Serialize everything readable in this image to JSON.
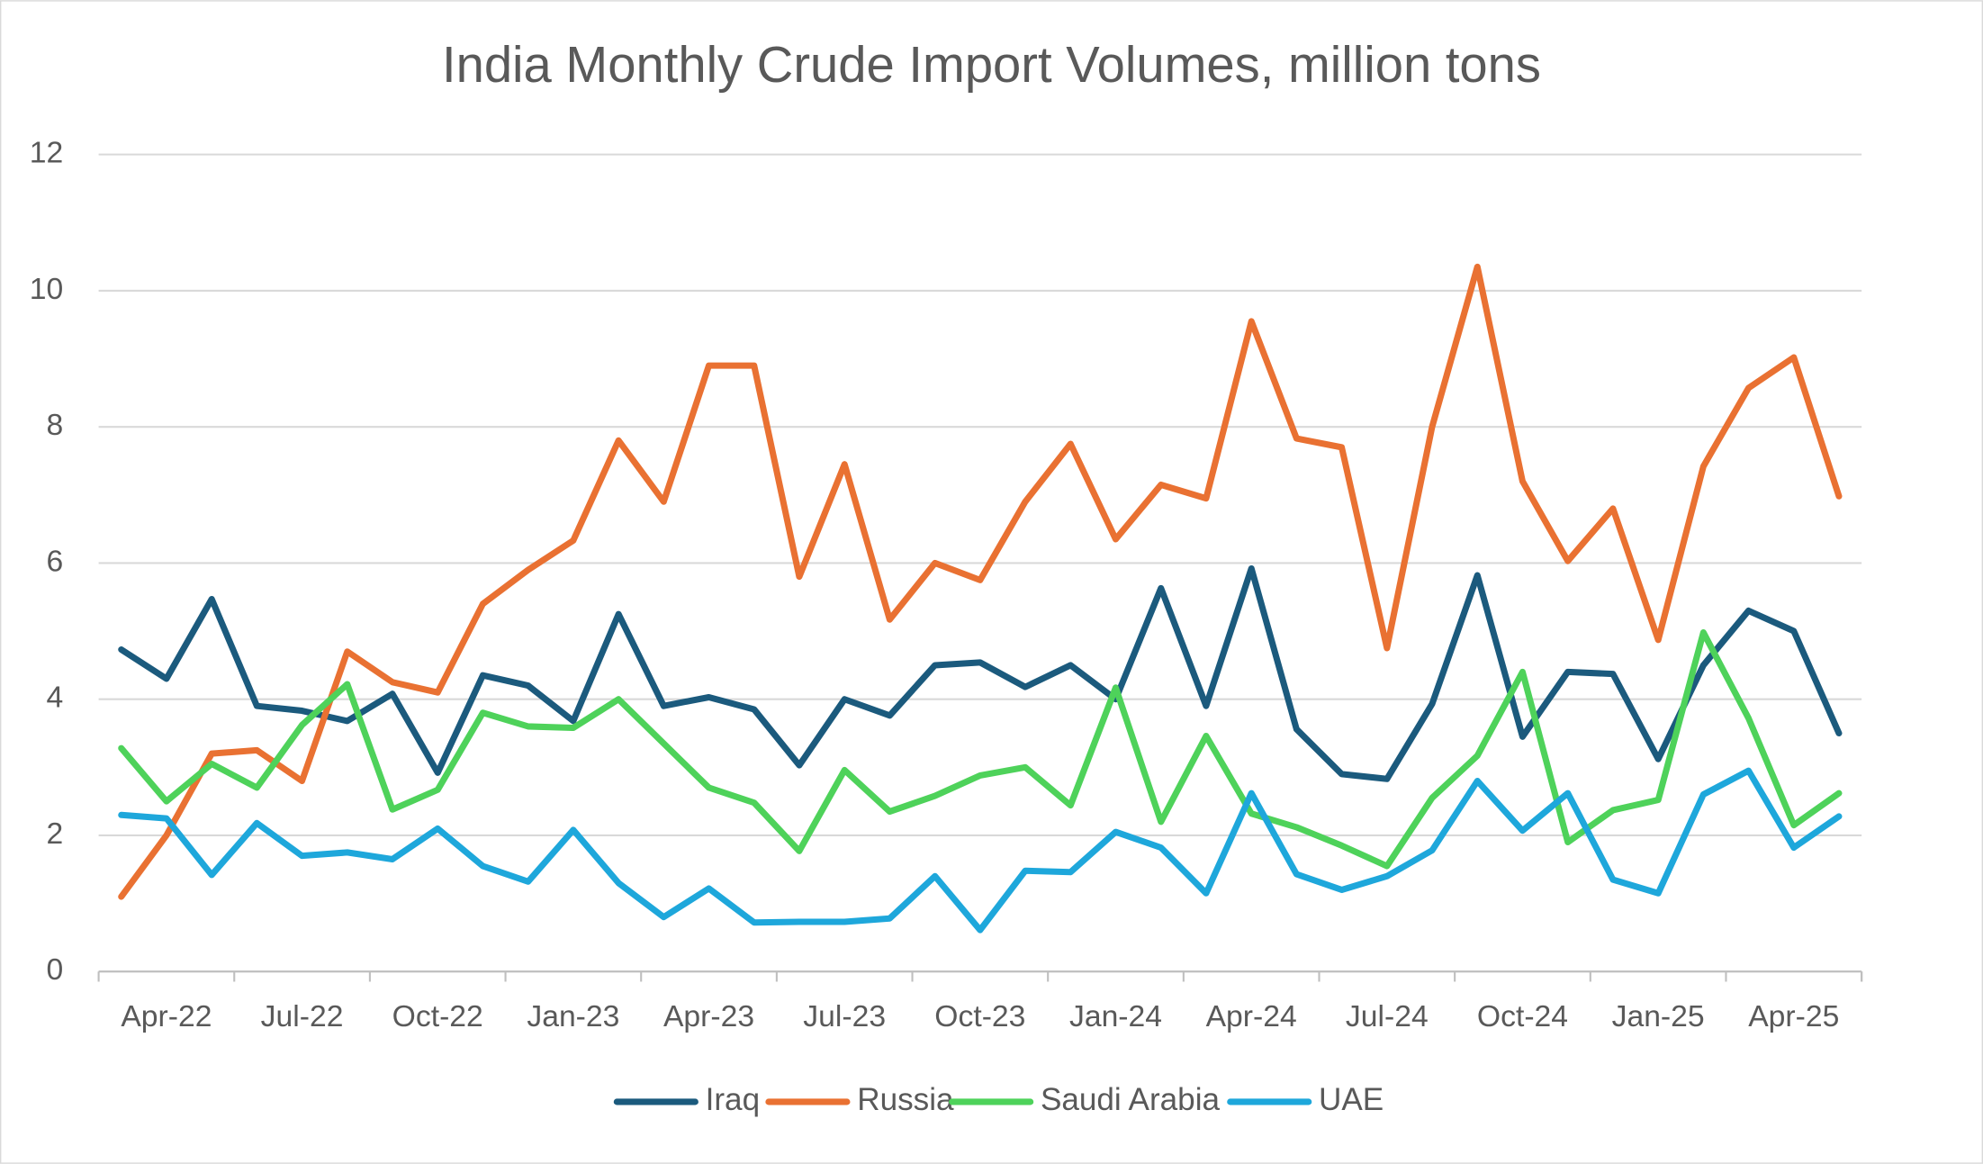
{
  "chart_data": {
    "type": "line",
    "title": "India Monthly Crude Import Volumes, million tons",
    "categories": [
      null,
      "Apr-22",
      null,
      null,
      "Jul-22",
      null,
      null,
      "Oct-22",
      null,
      null,
      "Jan-23",
      null,
      null,
      "Apr-23",
      null,
      null,
      "Jul-23",
      null,
      null,
      "Oct-23",
      null,
      null,
      "Jan-24",
      null,
      null,
      "Apr-24",
      null,
      null,
      "Jul-24",
      null,
      null,
      "Oct-24",
      null,
      null,
      "Jan-25",
      null,
      null,
      "Apr-25",
      null
    ],
    "series": [
      {
        "name": "Iraq",
        "color": "#1b5a7d",
        "values": [
          4.73,
          4.3,
          5.47,
          3.9,
          3.83,
          3.68,
          4.08,
          2.92,
          4.35,
          4.2,
          3.68,
          5.25,
          3.9,
          4.03,
          3.85,
          3.03,
          4.0,
          3.76,
          4.5,
          4.54,
          4.18,
          4.5,
          4.0,
          5.63,
          3.9,
          5.92,
          3.56,
          2.9,
          2.83,
          3.93,
          5.82,
          3.45,
          4.4,
          4.37,
          3.12,
          4.5,
          5.3,
          5.0,
          3.5
        ]
      },
      {
        "name": "Russia",
        "color": "#e97132",
        "values": [
          1.1,
          2.0,
          3.2,
          3.25,
          2.8,
          4.7,
          4.25,
          4.1,
          5.4,
          5.9,
          6.33,
          7.8,
          6.9,
          8.9,
          8.9,
          5.8,
          7.45,
          5.17,
          6.0,
          5.75,
          6.9,
          7.75,
          6.35,
          7.15,
          6.95,
          9.55,
          7.83,
          7.7,
          4.75,
          8.0,
          10.35,
          7.2,
          6.03,
          6.8,
          4.87,
          7.42,
          8.57,
          9.02,
          6.98
        ]
      },
      {
        "name": "Saudi Arabia",
        "color": "#4ed25a",
        "values": [
          3.28,
          2.5,
          3.05,
          2.7,
          3.62,
          4.22,
          2.38,
          2.67,
          3.8,
          3.6,
          3.58,
          4.0,
          3.35,
          2.7,
          2.48,
          1.77,
          2.96,
          2.35,
          2.58,
          2.88,
          3.0,
          2.44,
          4.17,
          2.2,
          3.46,
          2.32,
          2.12,
          1.85,
          1.55,
          2.55,
          3.17,
          4.4,
          1.9,
          2.37,
          2.52,
          4.98,
          3.72,
          2.15,
          2.62
        ]
      },
      {
        "name": "UAE",
        "color": "#1ea7db",
        "values": [
          2.3,
          2.25,
          1.42,
          2.18,
          1.7,
          1.75,
          1.65,
          2.1,
          1.55,
          1.32,
          2.08,
          1.3,
          0.8,
          1.22,
          0.72,
          0.73,
          0.73,
          0.78,
          1.4,
          0.61,
          1.48,
          1.46,
          2.05,
          1.82,
          1.15,
          2.62,
          1.43,
          1.2,
          1.4,
          1.78,
          2.8,
          2.07,
          2.62,
          1.35,
          1.15,
          2.6,
          2.95,
          1.82,
          2.28
        ]
      }
    ],
    "ylim": [
      0,
      12
    ],
    "yticks": [
      0,
      2,
      4,
      6,
      8,
      10,
      12
    ],
    "grid": true,
    "legend": "bottom"
  }
}
